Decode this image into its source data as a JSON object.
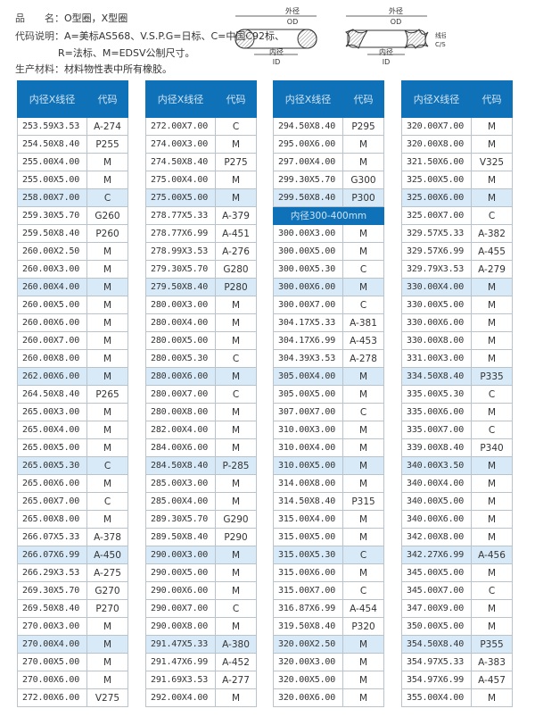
{
  "info": {
    "name_label": "品　　名：",
    "name_value": "O型圈，X型圈",
    "code_label": "代码说明：",
    "code_line1": "A=美标AS568、V.S.P.G=日标、C=中国C92标、",
    "code_line2": "R=法标、M=EDSV公制尺寸。",
    "material_label": "生产材料：",
    "material_value": "材料物性表中所有橡胶。"
  },
  "diagrams": {
    "od_cn": "外径",
    "od": "OD",
    "id_cn": "内径",
    "id": "ID",
    "cs_cn": "线径",
    "cs": "C/S"
  },
  "colors": {
    "header": "#0f72b8",
    "highlight": "#d8eaf7"
  },
  "table_header": {
    "size": "内径X线径",
    "code": "代码"
  },
  "tables": [
    [
      [
        "253.59X3.53",
        "A-274"
      ],
      [
        "254.50X8.40",
        "P255"
      ],
      [
        "255.00X4.00",
        "M"
      ],
      [
        "255.00X5.00",
        "M"
      ],
      [
        "258.00X7.00",
        "C"
      ],
      [
        "259.30X5.70",
        "G260"
      ],
      [
        "259.50X8.40",
        "P260"
      ],
      [
        "260.00X2.50",
        "M"
      ],
      [
        "260.00X3.00",
        "M"
      ],
      [
        "260.00X4.00",
        "M"
      ],
      [
        "260.00X5.00",
        "M"
      ],
      [
        "260.00X6.00",
        "M"
      ],
      [
        "260.00X7.00",
        "M"
      ],
      [
        "260.00X8.00",
        "M"
      ],
      [
        "262.00X6.00",
        "M"
      ],
      [
        "264.50X8.40",
        "P265"
      ],
      [
        "265.00X3.00",
        "M"
      ],
      [
        "265.00X4.00",
        "M"
      ],
      [
        "265.00X5.00",
        "M"
      ],
      [
        "265.00X5.30",
        "C"
      ],
      [
        "265.00X6.00",
        "M"
      ],
      [
        "265.00X7.00",
        "C"
      ],
      [
        "265.00X8.00",
        "M"
      ],
      [
        "266.07X5.33",
        "A-378"
      ],
      [
        "266.07X6.99",
        "A-450"
      ],
      [
        "266.29X3.53",
        "A-275"
      ],
      [
        "269.30X5.70",
        "G270"
      ],
      [
        "269.50X8.40",
        "P270"
      ],
      [
        "270.00X3.00",
        "M"
      ],
      [
        "270.00X4.00",
        "M"
      ],
      [
        "270.00X5.00",
        "M"
      ],
      [
        "270.00X6.00",
        "M"
      ],
      [
        "272.00X6.00",
        "V275"
      ]
    ],
    [
      [
        "272.00X7.00",
        "C"
      ],
      [
        "274.00X3.00",
        "M"
      ],
      [
        "274.50X8.40",
        "P275"
      ],
      [
        "275.00X4.00",
        "M"
      ],
      [
        "275.00X5.00",
        "M"
      ],
      [
        "278.77X5.33",
        "A-379"
      ],
      [
        "278.77X6.99",
        "A-451"
      ],
      [
        "278.99X3.53",
        "A-276"
      ],
      [
        "279.30X5.70",
        "G280"
      ],
      [
        "279.50X8.40",
        "P280"
      ],
      [
        "280.00X3.00",
        "M"
      ],
      [
        "280.00X4.00",
        "M"
      ],
      [
        "280.00X5.00",
        "M"
      ],
      [
        "280.00X5.30",
        "C"
      ],
      [
        "280.00X6.00",
        "M"
      ],
      [
        "280.00X7.00",
        "C"
      ],
      [
        "280.00X8.00",
        "M"
      ],
      [
        "282.00X4.00",
        "M"
      ],
      [
        "284.00X6.00",
        "M"
      ],
      [
        "284.50X8.40",
        "P-285"
      ],
      [
        "285.00X3.00",
        "M"
      ],
      [
        "285.00X4.00",
        "M"
      ],
      [
        "289.30X5.70",
        "G290"
      ],
      [
        "289.50X8.40",
        "P290"
      ],
      [
        "290.00X3.00",
        "M"
      ],
      [
        "290.00X5.00",
        "M"
      ],
      [
        "290.00X6.00",
        "M"
      ],
      [
        "290.00X7.00",
        "C"
      ],
      [
        "290.00X8.00",
        "M"
      ],
      [
        "291.47X5.33",
        "A-380"
      ],
      [
        "291.47X6.99",
        "A-452"
      ],
      [
        "291.69X3.53",
        "A-277"
      ],
      [
        "292.00X4.00",
        "M"
      ]
    ],
    [
      [
        "294.50X8.40",
        "P295"
      ],
      [
        "295.00X6.00",
        "M"
      ],
      [
        "297.00X4.00",
        "M"
      ],
      [
        "299.30X5.70",
        "G300"
      ],
      [
        "299.50X8.40",
        "P300"
      ],
      [
        "内径300-400mm"
      ],
      [
        "300.00X3.00",
        "M"
      ],
      [
        "300.00X5.00",
        "M"
      ],
      [
        "300.00X5.30",
        "C"
      ],
      [
        "300.00X6.00",
        "M"
      ],
      [
        "300.00X7.00",
        "C"
      ],
      [
        "304.17X5.33",
        "A-381"
      ],
      [
        "304.17X6.99",
        "A-453"
      ],
      [
        "304.39X3.53",
        "A-278"
      ],
      [
        "305.00X4.00",
        "M"
      ],
      [
        "305.00X5.00",
        "M"
      ],
      [
        "307.00X7.00",
        "C"
      ],
      [
        "310.00X3.00",
        "M"
      ],
      [
        "310.00X4.00",
        "M"
      ],
      [
        "310.00X5.00",
        "M"
      ],
      [
        "314.00X8.00",
        "M"
      ],
      [
        "314.50X8.40",
        "P315"
      ],
      [
        "315.00X4.00",
        "M"
      ],
      [
        "315.00X5.00",
        "M"
      ],
      [
        "315.00X5.30",
        "C"
      ],
      [
        "315.00X6.00",
        "M"
      ],
      [
        "315.00X7.00",
        "C"
      ],
      [
        "316.87X6.99",
        "A-454"
      ],
      [
        "319.50X8.40",
        "P320"
      ],
      [
        "320.00X2.50",
        "M"
      ],
      [
        "320.00X3.00",
        "M"
      ],
      [
        "320.00X5.00",
        "M"
      ],
      [
        "320.00X6.00",
        "M"
      ]
    ],
    [
      [
        "320.00X7.00",
        "M"
      ],
      [
        "320.00X8.00",
        "M"
      ],
      [
        "321.50X6.00",
        "V325"
      ],
      [
        "325.00X5.00",
        "M"
      ],
      [
        "325.00X6.00",
        "M"
      ],
      [
        "325.00X7.00",
        "C"
      ],
      [
        "329.57X5.33",
        "A-382"
      ],
      [
        "329.57X6.99",
        "A-455"
      ],
      [
        "329.79X3.53",
        "A-279"
      ],
      [
        "330.00X4.00",
        "M"
      ],
      [
        "330.00X5.00",
        "M"
      ],
      [
        "330.00X6.00",
        "M"
      ],
      [
        "330.00X8.00",
        "M"
      ],
      [
        "331.00X3.00",
        "M"
      ],
      [
        "334.50X8.40",
        "P335"
      ],
      [
        "335.00X5.30",
        "C"
      ],
      [
        "335.00X6.00",
        "M"
      ],
      [
        "335.00X7.00",
        "C"
      ],
      [
        "339.00X8.40",
        "P340"
      ],
      [
        "340.00X3.50",
        "M"
      ],
      [
        "340.00X4.00",
        "M"
      ],
      [
        "340.00X5.00",
        "M"
      ],
      [
        "340.00X6.00",
        "M"
      ],
      [
        "342.00X8.00",
        "M"
      ],
      [
        "342.27X6.99",
        "A-456"
      ],
      [
        "345.00X5.00",
        "M"
      ],
      [
        "345.00X7.00",
        "C"
      ],
      [
        "347.00X9.00",
        "M"
      ],
      [
        "350.00X5.00",
        "M"
      ],
      [
        "354.50X8.40",
        "P355"
      ],
      [
        "354.97X5.33",
        "A-383"
      ],
      [
        "354.97X6.99",
        "A-457"
      ],
      [
        "355.00X4.00",
        "M"
      ]
    ]
  ]
}
